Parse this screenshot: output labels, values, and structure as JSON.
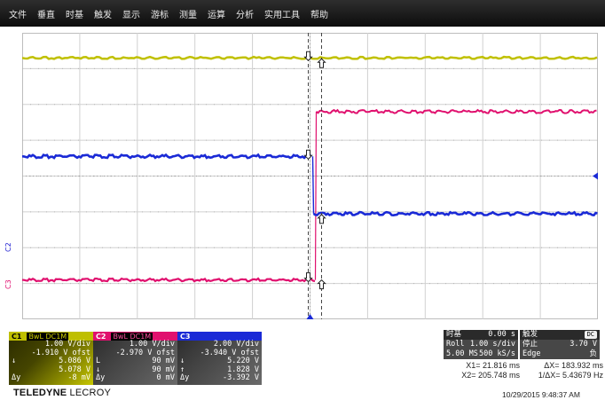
{
  "menu": [
    "文件",
    "垂直",
    "时基",
    "触发",
    "显示",
    "游标",
    "测量",
    "运算",
    "分析",
    "实用工具",
    "帮助"
  ],
  "colors": {
    "ch1": "#c0c000",
    "ch2": "#e0106e",
    "ch3": "#1a2ad6",
    "grid": "#d0d0d0",
    "grid_dot": "#9a9a9a"
  },
  "side_labels": {
    "c2": "C2",
    "c3": "C3"
  },
  "traces": {
    "ch1": {
      "level_div": 3.3
    },
    "ch2": {
      "before_div": -2.9,
      "after_div": 1.8,
      "edge_div": 0.3
    },
    "ch3": {
      "before_div": 0.55,
      "after_div": -1.05,
      "edge_div": 0.1
    }
  },
  "channels": {
    "c1": {
      "id": "C1",
      "flags": "BwL DC1M",
      "vdiv": "1.00 V/div",
      "offset": "-1.910 V ofst",
      "r1s": "↓",
      "r1": "5.086 V",
      "r2s": "",
      "r2": "5.078 V",
      "r3s": "Δy",
      "r3": "-8 mV"
    },
    "c2": {
      "id": "C2",
      "flags": "BwL DC1M",
      "vdiv": "1.00 V/div",
      "offset": "-2.970 V ofst",
      "r1s": "L",
      "r1": "90 mV",
      "r2s": "↓",
      "r2": "90 mV",
      "r3s": "Δy",
      "r3": "0 mV"
    },
    "c3": {
      "id": "C3",
      "flags": "",
      "vdiv": "2.00 V/div",
      "offset": "-3.940 V ofst",
      "r1s": "↓",
      "r1": "5.220 V",
      "r2s": "↑",
      "r2": "1.828 V",
      "r3s": "Δy",
      "r3": "-3.392 V"
    }
  },
  "timebase": {
    "title": "时基",
    "delay": "0.00 s",
    "mode": "Roll",
    "tdiv": "1.00 s/div",
    "samples": "5.00 MS",
    "rate": "500 kS/s"
  },
  "trigger": {
    "title": "触发",
    "coupling": "DC",
    "state": "停止",
    "level": "3.70 V",
    "type": "Edge",
    "slope": "负"
  },
  "cursors": {
    "x1": "X1=   21.816 ms",
    "dx": "ΔX= 183.932 ms",
    "x2": "X2= 205.748 ms",
    "inv_dx": "1/ΔX=  5.43679 Hz"
  },
  "logo": {
    "bold": "TELEDYNE",
    "thin": "LECROY"
  },
  "timestamp": "10/29/2015 9:48:37 AM"
}
